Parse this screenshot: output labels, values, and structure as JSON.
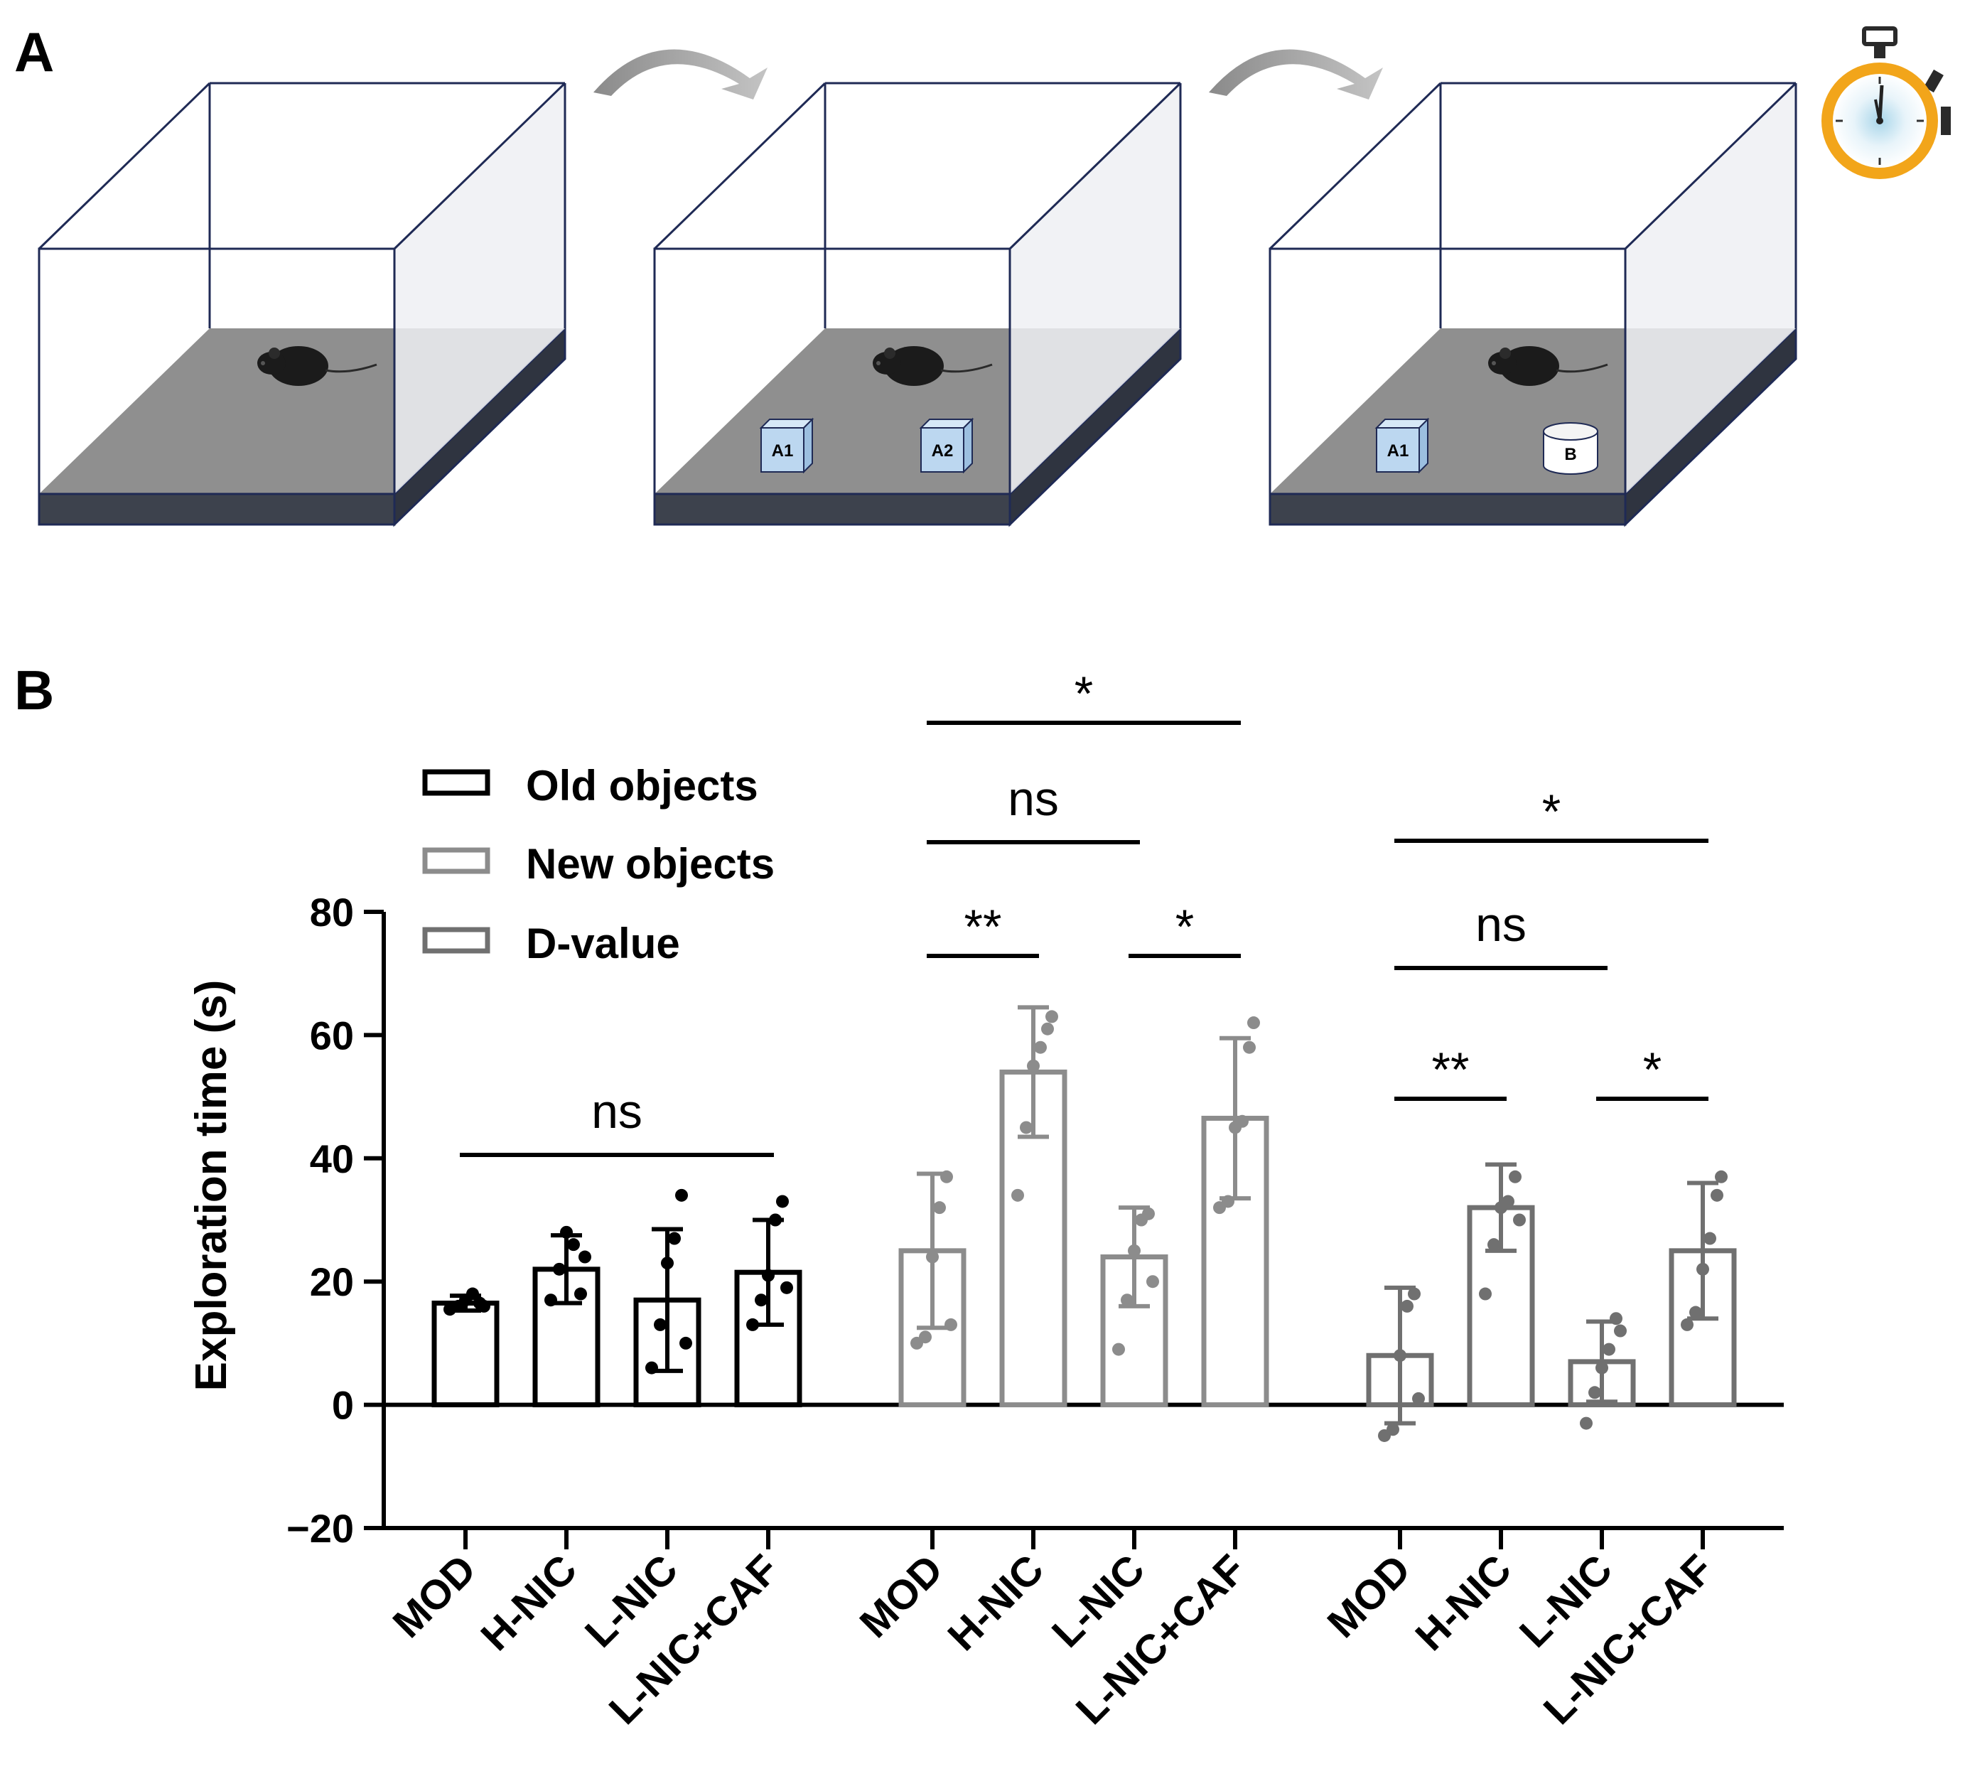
{
  "panels": {
    "a": "A",
    "b": "B"
  },
  "cage_objects": {
    "cage2": [
      "A1",
      "A2"
    ],
    "cage3": [
      "A1",
      "B"
    ]
  },
  "icons": {
    "mouse": "mouse-icon",
    "arrow": "curved-arrow-icon",
    "stopwatch": "stopwatch-icon"
  },
  "colors": {
    "old": "#000000",
    "new": "#8c8c8c",
    "dvalue": "#707070",
    "floor": "#8f8f8f",
    "floor_side": "#3a3f4a",
    "cage_edge": "#1f2a55"
  },
  "chart_data": {
    "type": "bar",
    "ylabel": "Exploration time (s)",
    "ylim": [
      -20,
      80
    ],
    "yticks": [
      -20,
      0,
      20,
      40,
      60,
      80
    ],
    "legend": {
      "position": "top-left",
      "entries": [
        "Old objects",
        "New objects",
        "D-value"
      ]
    },
    "series": [
      {
        "name": "Old objects",
        "categories": [
          "MOD",
          "H-NIC",
          "L-NIC",
          "L-NIC+CAF"
        ],
        "values": [
          16.5,
          22,
          17,
          21.5
        ],
        "err": [
          1.2,
          5.5,
          11.5,
          8.5
        ],
        "points": [
          [
            15.5,
            16,
            17,
            18,
            16.5,
            16
          ],
          [
            17,
            22,
            28,
            26,
            18,
            24
          ],
          [
            6,
            13,
            23,
            27,
            34,
            10
          ],
          [
            13,
            17,
            21,
            30,
            33,
            19
          ]
        ]
      },
      {
        "name": "New objects",
        "categories": [
          "MOD",
          "H-NIC",
          "L-NIC",
          "L-NIC+CAF"
        ],
        "values": [
          25,
          54,
          24,
          46.5
        ],
        "err": [
          12.5,
          10.5,
          8,
          13
        ],
        "points": [
          [
            10,
            11,
            24,
            32,
            37,
            13
          ],
          [
            34,
            45,
            55,
            58,
            61,
            63
          ],
          [
            9,
            17,
            25,
            30,
            31,
            20
          ],
          [
            32,
            33,
            45,
            46,
            58,
            62
          ]
        ]
      },
      {
        "name": "D-value",
        "categories": [
          "MOD",
          "H-NIC",
          "L-NIC",
          "L-NIC+CAF"
        ],
        "values": [
          8,
          32,
          7,
          25
        ],
        "err": [
          11,
          7,
          6.5,
          11
        ],
        "points": [
          [
            -5,
            -4,
            8,
            16,
            18,
            1
          ],
          [
            18,
            26,
            32,
            33,
            37,
            30
          ],
          [
            -3,
            2,
            6,
            9,
            14,
            12
          ],
          [
            13,
            15,
            22,
            27,
            34,
            37
          ]
        ]
      }
    ],
    "significance": [
      {
        "label": "ns",
        "from": [
          0,
          0
        ],
        "to": [
          0,
          3
        ]
      },
      {
        "label": "**",
        "from": [
          1,
          0
        ],
        "to": [
          1,
          1
        ]
      },
      {
        "label": "*",
        "from": [
          1,
          2
        ],
        "to": [
          1,
          3
        ]
      },
      {
        "label": "ns",
        "from": [
          1,
          0
        ],
        "to": [
          1,
          2
        ]
      },
      {
        "label": "*",
        "from": [
          1,
          0
        ],
        "to": [
          1,
          3
        ]
      },
      {
        "label": "**",
        "from": [
          2,
          0
        ],
        "to": [
          2,
          1
        ]
      },
      {
        "label": "*",
        "from": [
          2,
          2
        ],
        "to": [
          2,
          3
        ]
      },
      {
        "label": "ns",
        "from": [
          2,
          0
        ],
        "to": [
          2,
          2
        ]
      },
      {
        "label": "*",
        "from": [
          2,
          0
        ],
        "to": [
          2,
          3
        ]
      }
    ]
  }
}
